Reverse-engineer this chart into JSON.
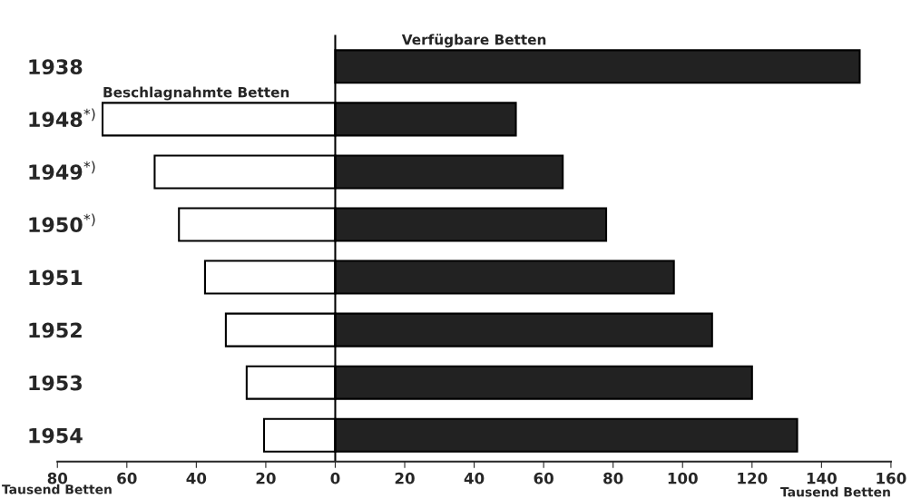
{
  "chart_data": {
    "type": "bar",
    "orientation": "horizontal",
    "stacked": true,
    "categories": [
      "1938",
      "1948$^{*)}$",
      "1949$^{*)}$",
      "1950$^{*)}$",
      "1951",
      "1952",
      "1953",
      "1954"
    ],
    "series": [
      {
        "name": "Beschlagnahmte Betten",
        "color": "#ffffff",
        "values": [
          null,
          -67,
          -52,
          -45,
          -37.5,
          -31.5,
          -25.5,
          -20.5
        ]
      },
      {
        "name": "Verfügbare Betten",
        "color": "#222222",
        "values": [
          151,
          52,
          65.5,
          78,
          97.5,
          108.5,
          120,
          133
        ]
      }
    ],
    "xlim": [
      -80,
      160
    ],
    "xticks": [
      {
        "value": -80,
        "label": "80"
      },
      {
        "value": -60,
        "label": "60"
      },
      {
        "value": -40,
        "label": "40"
      },
      {
        "value": -20,
        "label": "20"
      },
      0,
      20,
      40,
      60,
      80,
      100,
      120,
      140,
      160
    ],
    "xlabel": "Tausend Betten",
    "annotations": [
      "Tausend Betten"
    ],
    "ref_lines": [
      {
        "axis": "x",
        "value": 0,
        "color": "#000000"
      }
    ],
    "grid": false,
    "legend": false
  }
}
